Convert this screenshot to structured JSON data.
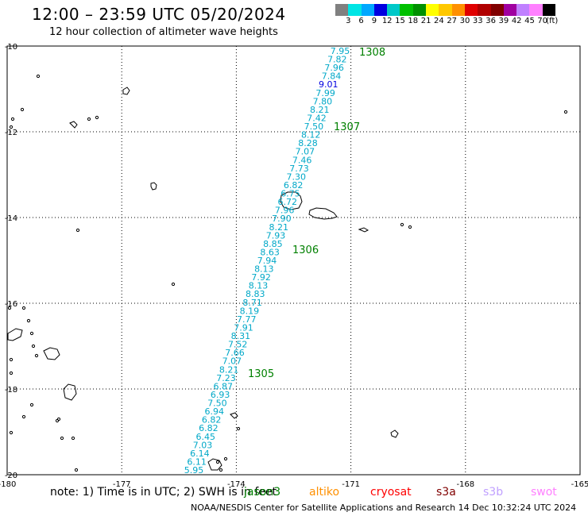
{
  "header": {
    "title": "12:00 – 23:59 UTC 05/20/2024",
    "subtitle": "12 hour collection of altimeter wave heights"
  },
  "scale": {
    "colors": [
      "#808080",
      "#00e5e5",
      "#00a8ff",
      "#0000e0",
      "#00c8c8",
      "#00c000",
      "#009000",
      "#ffff00",
      "#ffc800",
      "#ff9000",
      "#e00000",
      "#b00000",
      "#800000",
      "#a000a0",
      "#c080ff",
      "#ff80ff",
      "#000000"
    ],
    "labels": [
      "3",
      "6",
      "9",
      "12",
      "15",
      "18",
      "21",
      "24",
      "27",
      "30",
      "33",
      "36",
      "39",
      "42",
      "45",
      "70",
      "(ft)"
    ]
  },
  "map": {
    "lat_labels": [
      "-10",
      "-12",
      "-14",
      "-16",
      "-18",
      "-20"
    ],
    "lon_labels": [
      "-180",
      "-177",
      "-174",
      "-171",
      "-168",
      "-165"
    ],
    "passes": [
      {
        "id": "1308",
        "color": "#008000"
      },
      {
        "id": "1307",
        "color": "#008000"
      },
      {
        "id": "1306",
        "color": "#008000"
      },
      {
        "id": "1305",
        "color": "#008000"
      }
    ],
    "track_values": [
      "7.95",
      "7.82",
      "7.96",
      "7.84",
      "9.01",
      "7.99",
      "7.80",
      "8.21",
      "7.42",
      "7.50",
      "8.12",
      "8.28",
      "7.07",
      "7.46",
      "7.73",
      "7.30",
      "6.82",
      "6.75",
      "6.72",
      "7.96",
      "7.90",
      "8.21",
      "7.93",
      "8.85",
      "8.63",
      "7.94",
      "8.13",
      "7.92",
      "8.13",
      "8.83",
      "8.71",
      "8.19",
      "7.77",
      "7.91",
      "8.31",
      "7.52",
      "7.66",
      "7.07",
      "8.21",
      "7.23",
      "6.87",
      "6.93",
      "7.50",
      "6.94",
      "6.82",
      "6.82",
      "6.45",
      "7.03",
      "6.14",
      "6.11",
      "5.95"
    ],
    "highlight_value": "9.01"
  },
  "footer": {
    "note": "note: 1) Time is in UTC; 2) SWH is in feet",
    "satellites": [
      {
        "name": "jason3",
        "color": "#008000"
      },
      {
        "name": "altiko",
        "color": "#ff9000"
      },
      {
        "name": "cryosat",
        "color": "#ff0000"
      },
      {
        "name": "s3a",
        "color": "#800000"
      },
      {
        "name": "s3b",
        "color": "#c0a0ff"
      },
      {
        "name": "swot",
        "color": "#ff80ff"
      }
    ],
    "credit": "NOAA/NESDIS Center for Satellite Applications and Research   14 Dec 10:32:24 UTC 2024"
  }
}
